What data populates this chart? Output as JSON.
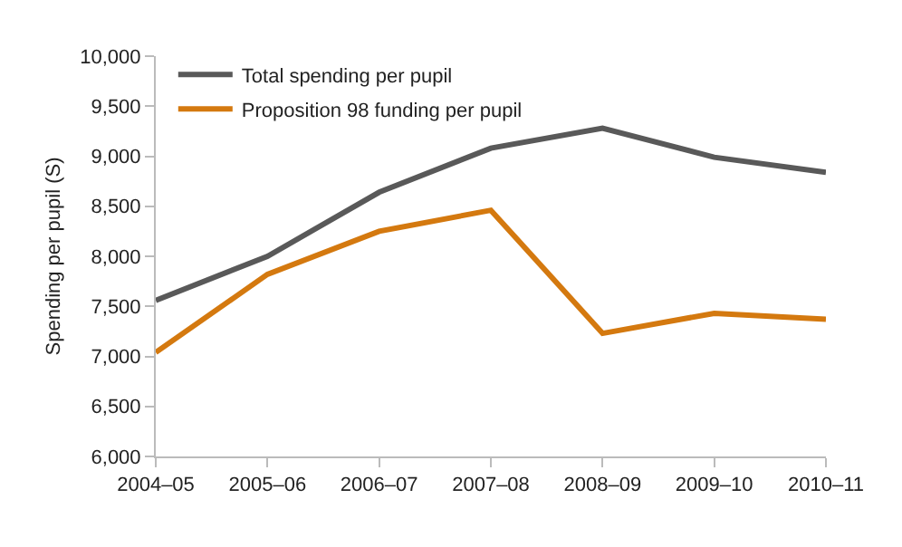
{
  "chart_data": {
    "type": "line",
    "ylabel": "Spending per pupil (S)",
    "categories": [
      "2004–05",
      "2005–06",
      "2006–07",
      "2007–08",
      "2008–09",
      "2009–10",
      "2010–11"
    ],
    "series": [
      {
        "name": "Total spending per pupil",
        "color": "#595959",
        "values": [
          7560,
          8000,
          8640,
          9080,
          9280,
          8990,
          8840
        ]
      },
      {
        "name": "Proposition 98 funding per pupil",
        "color": "#d4790f",
        "values": [
          7040,
          7820,
          8250,
          8460,
          7230,
          7430,
          7370
        ]
      }
    ],
    "ylim": [
      6000,
      10000
    ],
    "yticks": [
      {
        "value": 6000,
        "label": "6,000"
      },
      {
        "value": 6500,
        "label": "6,500"
      },
      {
        "value": 7000,
        "label": "7,000"
      },
      {
        "value": 7500,
        "label": "7,500"
      },
      {
        "value": 8000,
        "label": "8,000"
      },
      {
        "value": 8500,
        "label": "8,500"
      },
      {
        "value": 9000,
        "label": "9,000"
      },
      {
        "value": 9500,
        "label": "9,500"
      },
      {
        "value": 10000,
        "label": "10,000"
      }
    ],
    "grid": false,
    "legend": "top left",
    "marker": "none",
    "line_style": "solid"
  }
}
